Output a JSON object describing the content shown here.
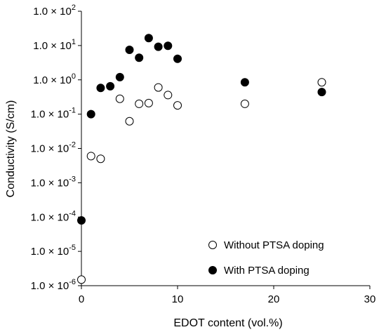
{
  "chart_data": {
    "type": "scatter",
    "xlabel": "EDOT content (vol.%)",
    "ylabel": "Conductivity (S/cm)",
    "xlim": [
      0,
      30
    ],
    "ylim": [
      1e-06,
      100
    ],
    "yscale": "log",
    "grid": false,
    "legend_position": "bottom-right",
    "x_ticks": [
      {
        "value": 0,
        "label": "0"
      },
      {
        "value": 10,
        "label": "10"
      },
      {
        "value": 20,
        "label": "20"
      },
      {
        "value": 30,
        "label": "30"
      }
    ],
    "y_ticks": [
      {
        "value": 1e-06,
        "mantissa": "1.0 × 10",
        "exp": "-6"
      },
      {
        "value": 1e-05,
        "mantissa": "1.0 × 10",
        "exp": "-5"
      },
      {
        "value": 0.0001,
        "mantissa": "1.0 × 10",
        "exp": "-4"
      },
      {
        "value": 0.001,
        "mantissa": "1.0 × 10",
        "exp": "-3"
      },
      {
        "value": 0.01,
        "mantissa": "1.0 × 10",
        "exp": "-2"
      },
      {
        "value": 0.1,
        "mantissa": "1.0 × 10",
        "exp": "-1"
      },
      {
        "value": 1,
        "mantissa": "1.0 × 10",
        "exp": "0"
      },
      {
        "value": 10,
        "mantissa": "1.0 × 10",
        "exp": "1"
      },
      {
        "value": 100,
        "mantissa": "1.0 × 10",
        "exp": "2"
      }
    ],
    "series": [
      {
        "name": "Without PTSA doping",
        "marker": "open-circle",
        "points": [
          {
            "x": 0,
            "y": 1.5e-06
          },
          {
            "x": 1,
            "y": 0.006
          },
          {
            "x": 2,
            "y": 0.005
          },
          {
            "x": 4,
            "y": 0.28
          },
          {
            "x": 5,
            "y": 0.062
          },
          {
            "x": 6,
            "y": 0.2
          },
          {
            "x": 7,
            "y": 0.21
          },
          {
            "x": 8,
            "y": 0.6
          },
          {
            "x": 9,
            "y": 0.36
          },
          {
            "x": 10,
            "y": 0.18
          },
          {
            "x": 17,
            "y": 0.2
          },
          {
            "x": 25,
            "y": 0.85
          }
        ]
      },
      {
        "name": "With PTSA doping",
        "marker": "filled-circle",
        "points": [
          {
            "x": 0,
            "y": 8e-05
          },
          {
            "x": 1,
            "y": 0.1
          },
          {
            "x": 2,
            "y": 0.58
          },
          {
            "x": 3,
            "y": 0.65
          },
          {
            "x": 4,
            "y": 1.2
          },
          {
            "x": 5,
            "y": 7.5
          },
          {
            "x": 6,
            "y": 4.4
          },
          {
            "x": 7,
            "y": 16.5
          },
          {
            "x": 8,
            "y": 9.2
          },
          {
            "x": 9,
            "y": 9.8
          },
          {
            "x": 10,
            "y": 4.1
          },
          {
            "x": 17,
            "y": 0.85
          },
          {
            "x": 25,
            "y": 0.44
          }
        ]
      }
    ]
  }
}
